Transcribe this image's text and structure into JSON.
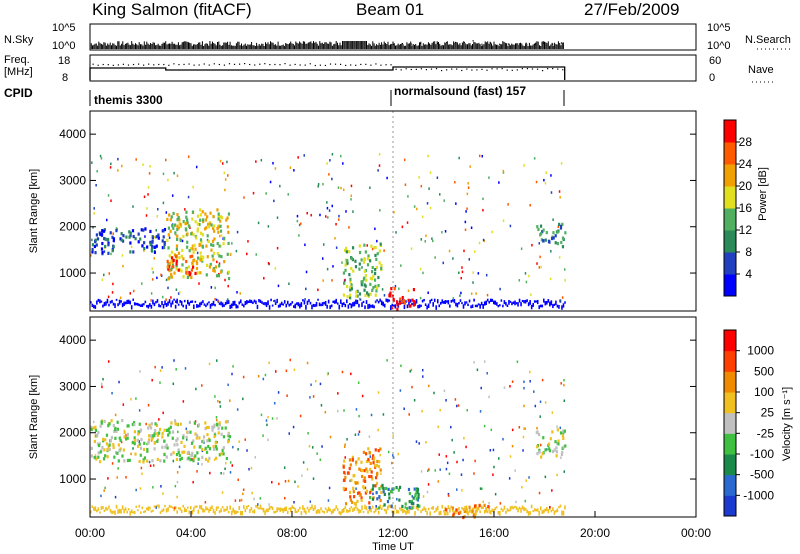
{
  "header": {
    "station": "King Salmon (fitACF)",
    "beam": "Beam 01",
    "date": "27/Feb/2009"
  },
  "noise_panel": {
    "left_label": "N.Sky",
    "right_label": "N.Search",
    "left_ticks": [
      "10^5",
      "10^0"
    ],
    "right_ticks": [
      "10^5",
      "10^0"
    ]
  },
  "freq_panel": {
    "left_label_1": "Freq.",
    "left_label_2": "[MHz]",
    "right_label": "Nave",
    "left_ticks": [
      "18",
      "8"
    ],
    "right_ticks": [
      "60",
      "0"
    ]
  },
  "cpid_panel": {
    "label": "CPID",
    "segments": [
      {
        "name": "themis 3300",
        "start_hour": 0,
        "end_hour": 12
      },
      {
        "name": "normalsound (fast) 157",
        "start_hour": 12,
        "end_hour": 18.8
      }
    ]
  },
  "power_panel": {
    "ylabel": "Slant Range [km]",
    "y_ticks": [
      "4000",
      "3000",
      "2000",
      "1000"
    ],
    "colorbar_label": "Power [dB]",
    "colorbar_ticks": [
      "28",
      "24",
      "20",
      "16",
      "12",
      "8",
      "4"
    ],
    "colors": [
      "#0000ff",
      "#2040c0",
      "#2a8a5a",
      "#50b060",
      "#e0e020",
      "#f0a000",
      "#ff5a00",
      "#ff0000"
    ]
  },
  "velocity_panel": {
    "ylabel": "Slant Range [km]",
    "y_ticks": [
      "4000",
      "3000",
      "2000",
      "1000"
    ],
    "colorbar_label": "Velocity [m s⁻¹]",
    "colorbar_ticks": [
      "1000",
      "500",
      "100",
      "25",
      "-25",
      "-100",
      "-500",
      "-1000"
    ],
    "colors": [
      "#1a3ad0",
      "#2a6ad0",
      "#1a8a4a",
      "#40c040",
      "#c0c0c0",
      "#f0c020",
      "#f08a00",
      "#ff4000",
      "#ff0000"
    ]
  },
  "x_axis": {
    "ticks": [
      "00:00",
      "04:00",
      "08:00",
      "12:00",
      "16:00",
      "20:00",
      "00:00"
    ],
    "label": "Time UT"
  },
  "chart_data": {
    "type": "heatmap",
    "x_range_hours": [
      0,
      24
    ],
    "y_range_km": [
      180,
      4500
    ],
    "data_end_hour": 18.8,
    "power_regions": [
      {
        "t0": 0,
        "t1": 3,
        "r0": 1450,
        "r1": 2000,
        "level": 1
      },
      {
        "t0": 3,
        "t1": 5.5,
        "r0": 900,
        "r1": 2400,
        "level": 4
      },
      {
        "t0": 3,
        "t1": 4.2,
        "r0": 1000,
        "r1": 1400,
        "level": 6
      },
      {
        "t0": 10,
        "t1": 11.5,
        "r0": 500,
        "r1": 1700,
        "level": 3
      },
      {
        "t0": 11.8,
        "t1": 12.8,
        "r0": 250,
        "r1": 700,
        "level": 7
      },
      {
        "t0": 17.6,
        "t1": 18.8,
        "r0": 1600,
        "r1": 2100,
        "level": 2
      }
    ],
    "velocity_regions": [
      {
        "t0": 0,
        "t1": 5.5,
        "r0": 1400,
        "r1": 2300,
        "level": 4
      },
      {
        "t0": 10,
        "t1": 11.5,
        "r0": 500,
        "r1": 1700,
        "level": 6
      },
      {
        "t0": 11,
        "t1": 13,
        "r0": 400,
        "r1": 900,
        "level": 2
      },
      {
        "t0": 14,
        "t1": 16,
        "r0": 200,
        "r1": 500,
        "level": 6
      },
      {
        "t0": 17.6,
        "t1": 18.8,
        "r0": 1500,
        "r1": 2100,
        "level": 4
      }
    ]
  }
}
